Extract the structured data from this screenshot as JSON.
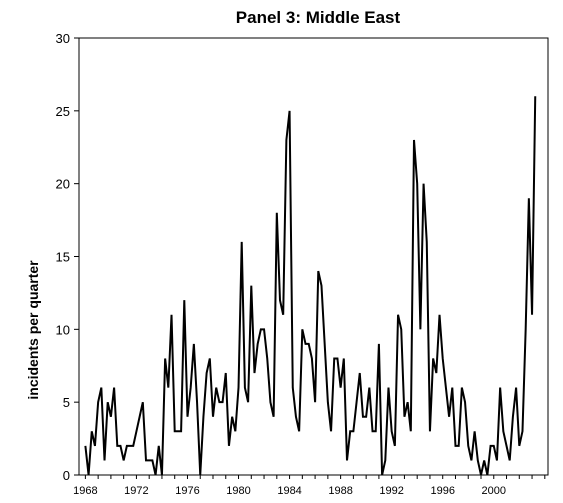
{
  "chart_data": {
    "type": "line",
    "title": "Panel 3: Middle East",
    "xlabel": "",
    "ylabel": "incidents per quarter",
    "xlim": [
      1967.5,
      2004.25
    ],
    "ylim": [
      0,
      30
    ],
    "yticks": [
      0,
      5,
      10,
      15,
      20,
      25,
      30
    ],
    "xticks": [
      1968,
      1972,
      1976,
      1980,
      1984,
      1988,
      1992,
      1996,
      2000
    ],
    "x_tick_labels": [
      "1968",
      "1972",
      "1976",
      "1980",
      "1984",
      "1988",
      "1992",
      "1996",
      "2000"
    ],
    "y_tick_labels": [
      "0",
      "5",
      "10",
      "15",
      "20",
      "25",
      "30"
    ],
    "grid": false,
    "legend": "none",
    "x_start": 1968.0,
    "x_step": 0.25,
    "series": [
      {
        "values": [
          2,
          0,
          3,
          2,
          5,
          6,
          1,
          5,
          4,
          6,
          2,
          2,
          1,
          2,
          2,
          2,
          3,
          4,
          5,
          1,
          1,
          1,
          0,
          2,
          0,
          8,
          6,
          11,
          3,
          3,
          3,
          12,
          4,
          6,
          9,
          5,
          0,
          4,
          7,
          8,
          4,
          6,
          5,
          5,
          7,
          2,
          4,
          3,
          6,
          16,
          6,
          5,
          13,
          7,
          9,
          10,
          10,
          8,
          5,
          4,
          18,
          12,
          11,
          23,
          25,
          6,
          4,
          3,
          10,
          9,
          9,
          8,
          5,
          14,
          13,
          9,
          5,
          3,
          8,
          8,
          6,
          8,
          1,
          3,
          3,
          5,
          7,
          4,
          4,
          6,
          3,
          3,
          9,
          0,
          1,
          6,
          3,
          2,
          11,
          10,
          4,
          5,
          3,
          23,
          20,
          10,
          20,
          16,
          3,
          8,
          7,
          11,
          8,
          6,
          4,
          6,
          2,
          2,
          6,
          5,
          2,
          1,
          3,
          1,
          0,
          1,
          0,
          2,
          2,
          1,
          6,
          3,
          2,
          1,
          4,
          6,
          2,
          3,
          10,
          19,
          11,
          26
        ]
      }
    ]
  }
}
